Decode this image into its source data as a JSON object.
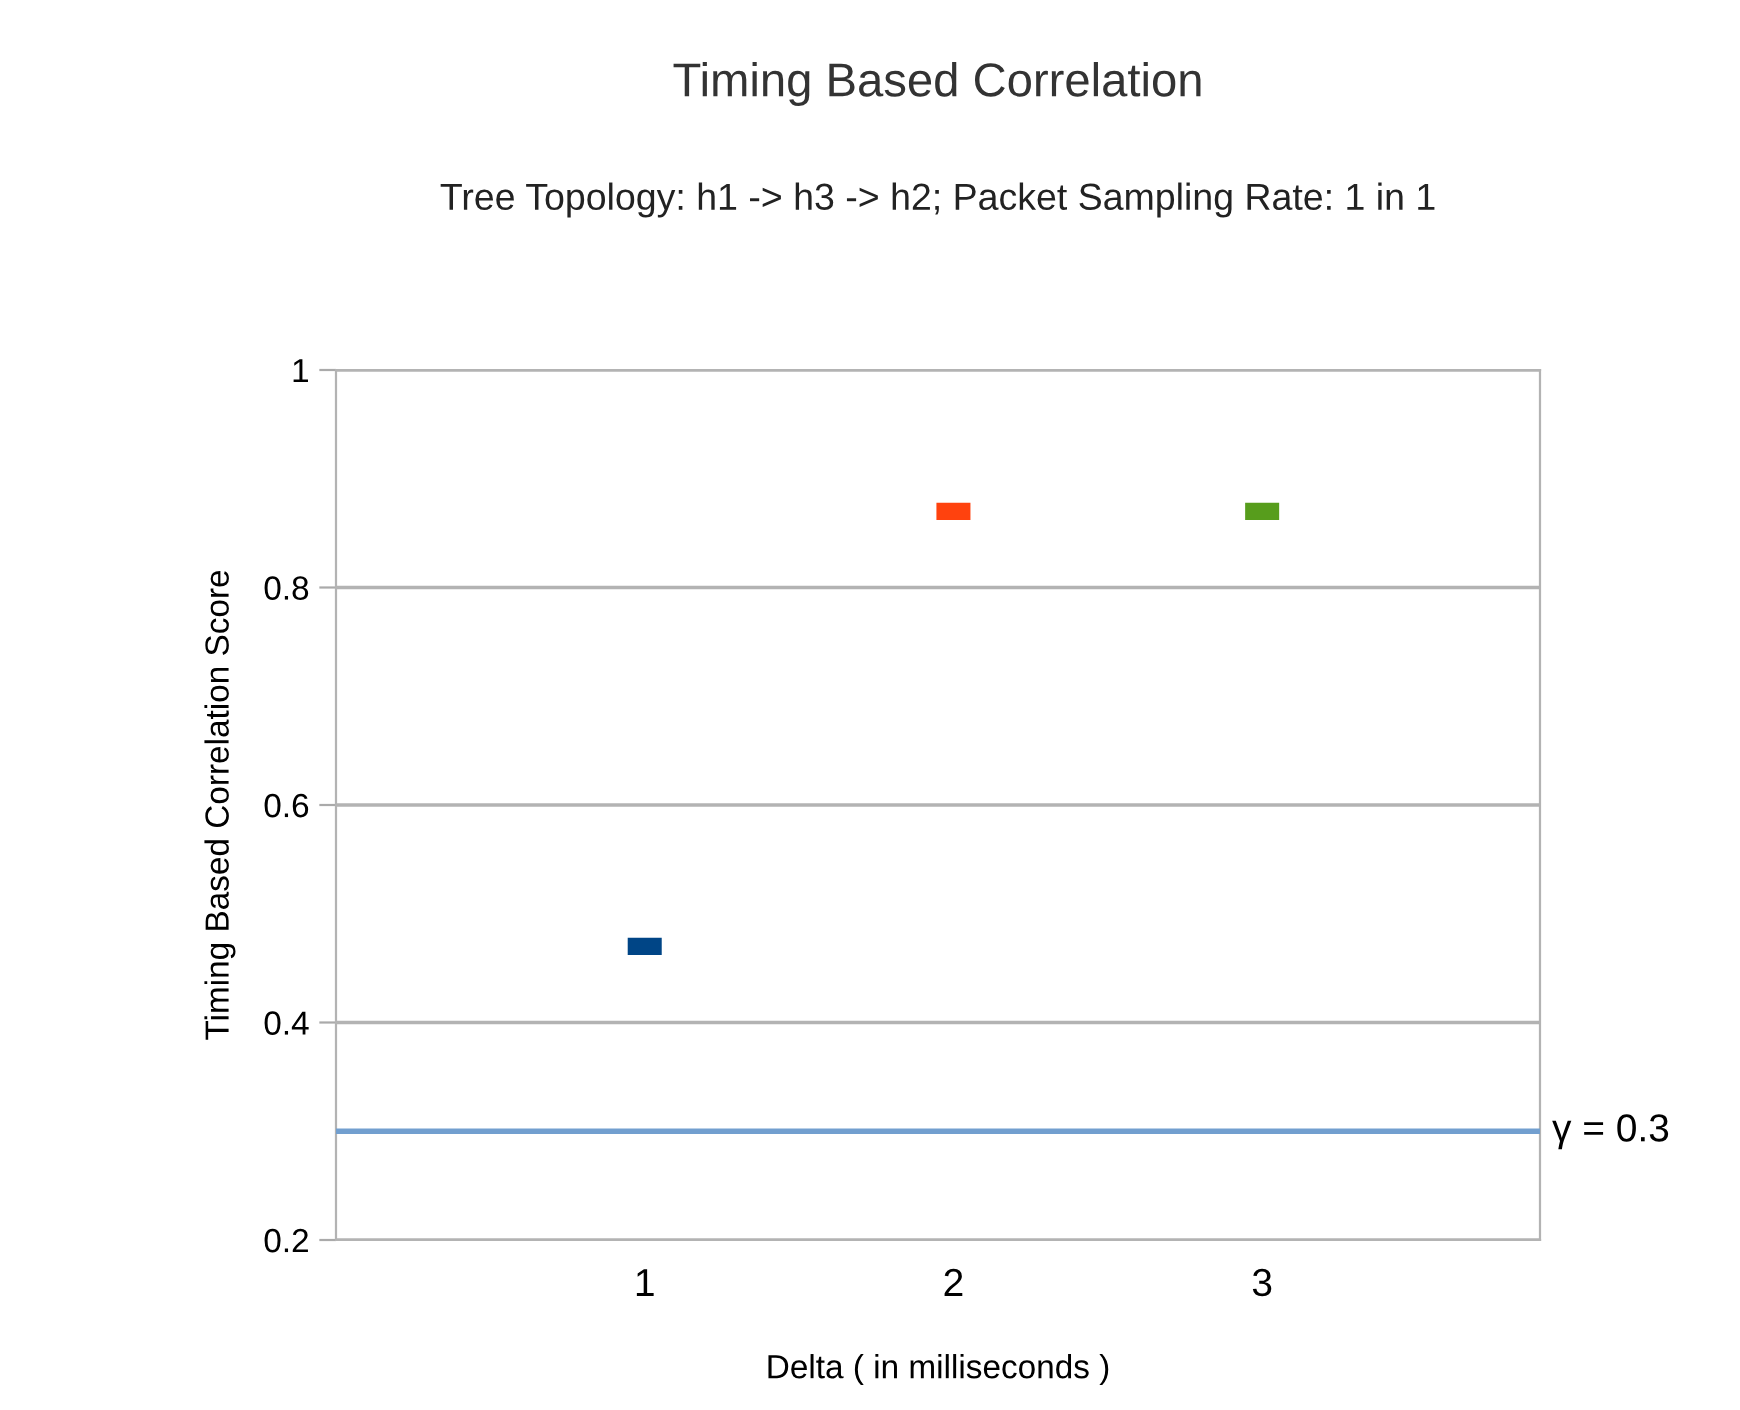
{
  "chart_data": {
    "type": "scatter",
    "title": "Timing Based Correlation",
    "subtitle": "Tree Topology: h1 -> h3 -> h2; Packet Sampling Rate: 1 in 1",
    "xlabel": "Delta ( in milliseconds )",
    "ylabel": "Timing Based Correlation Score",
    "x": [
      1,
      2,
      3
    ],
    "values": [
      0.47,
      0.87,
      0.87
    ],
    "colors": [
      "#004586",
      "#ff420e",
      "#579d1c"
    ],
    "xlim": [
      0,
      3.9
    ],
    "xticks": [
      1,
      2,
      3
    ],
    "ylim": [
      0.2,
      1
    ],
    "yticks": [
      0.2,
      0.4,
      0.6,
      0.8,
      1
    ],
    "grid": "y",
    "ref_lines": [
      {
        "axis": "y",
        "value": 0.3,
        "label": "γ = 0.3",
        "color": "#729fcf"
      }
    ]
  }
}
